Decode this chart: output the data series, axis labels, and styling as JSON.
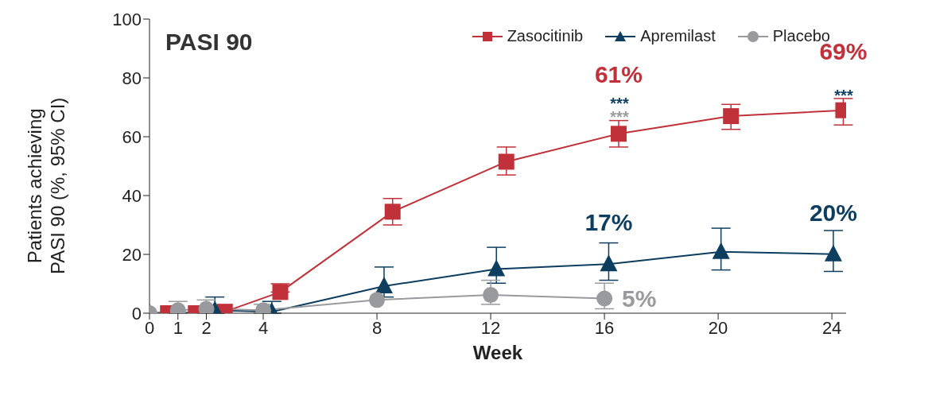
{
  "chart_data": {
    "type": "line",
    "title": "PASI 90",
    "xlabel": "Week",
    "ylabel": "Patients achieving\nPASI 90 (%, 95% CI)",
    "xlim": [
      0,
      24.5
    ],
    "xticks": [
      0,
      1,
      2,
      4,
      8,
      12,
      16,
      20,
      24
    ],
    "ylim": [
      0,
      100
    ],
    "yticks": [
      0,
      20,
      40,
      60,
      80,
      100
    ],
    "grid": false,
    "legend": "top right",
    "series": [
      {
        "name": "Zasocitinib",
        "color": "#c0313a",
        "marker": "square",
        "x": [
          0.65,
          1.63,
          2.65,
          4.6,
          8.55,
          12.55,
          16.5,
          20.45,
          24.4
        ],
        "values": [
          0,
          0,
          0.5,
          7.2,
          34.5,
          51.5,
          61,
          67,
          69
        ],
        "errors": [
          null,
          null,
          null,
          [
            7.2,
            10
          ],
          [
            30,
            39
          ],
          [
            47,
            56.5
          ],
          [
            56.5,
            65.5
          ],
          [
            62.5,
            71
          ],
          [
            64,
            73
          ]
        ],
        "value_labels": [
          null,
          null,
          null,
          null,
          null,
          null,
          "61%",
          null,
          "69%"
        ]
      },
      {
        "name": "Apremilast",
        "color": "#0d3e5f",
        "marker": "triangle",
        "x": [
          0,
          1.1,
          2.3,
          4.3,
          8.25,
          12.2,
          16.15,
          20.1,
          24.05
        ],
        "values": [
          0,
          0,
          1,
          0.5,
          9.2,
          15,
          16.7,
          20.9,
          20.1
        ],
        "errors": [
          null,
          null,
          [
            0,
            5.5
          ],
          [
            0,
            4
          ],
          [
            5.5,
            15.7
          ],
          [
            10.2,
            22.4
          ],
          [
            11.2,
            23.9
          ],
          [
            14.7,
            28.9
          ],
          [
            14.2,
            28.1
          ]
        ],
        "value_labels": [
          null,
          null,
          null,
          null,
          null,
          null,
          "17%",
          null,
          "20%"
        ]
      },
      {
        "name": "Placebo",
        "color": "#999a9e",
        "marker": "circle",
        "x": [
          0,
          1,
          2,
          4,
          8,
          12,
          16
        ],
        "values": [
          0,
          1,
          1.5,
          1,
          4.5,
          6.2,
          5
        ],
        "errors": [
          null,
          [
            0,
            4
          ],
          [
            0,
            4.5
          ],
          [
            0,
            3
          ],
          null,
          [
            3,
            11.2
          ],
          [
            1.5,
            10.2
          ]
        ],
        "value_labels": [
          null,
          null,
          null,
          null,
          null,
          null,
          "5%"
        ]
      }
    ],
    "annotations": [
      "***",
      "***",
      "***"
    ]
  }
}
